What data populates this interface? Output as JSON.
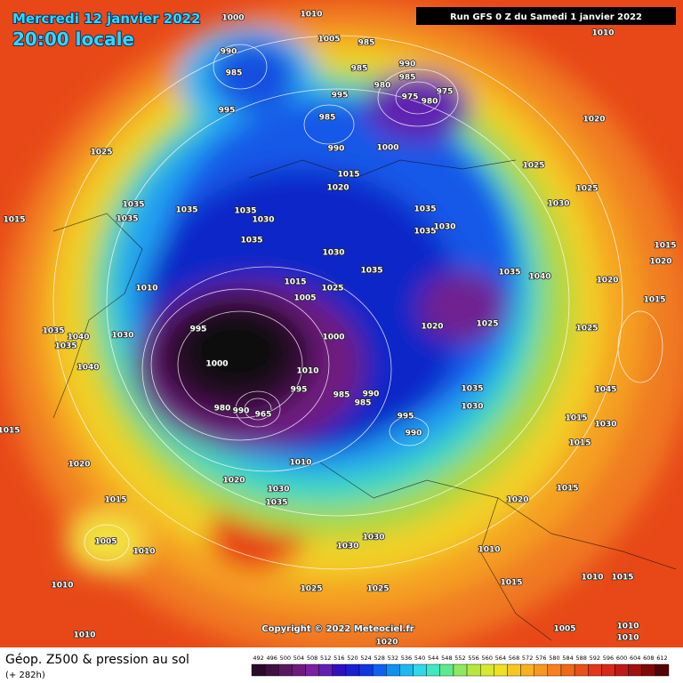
{
  "header": {
    "date": "Mercredi 12 janvier 2022",
    "time": "20:00 locale",
    "run": "Run GFS 0 Z du Samedi 1 janvier 2022"
  },
  "copyright": "Copyright © 2022 Meteociel.fr",
  "footer": {
    "title": "Géop. Z500 & pression au sol",
    "lead": "(+ 282h)"
  },
  "colorbar": {
    "values": [
      492,
      496,
      500,
      504,
      508,
      512,
      516,
      520,
      524,
      528,
      532,
      536,
      540,
      544,
      548,
      552,
      556,
      560,
      564,
      568,
      572,
      576,
      580,
      584,
      588,
      592,
      596,
      600,
      604,
      608,
      612
    ],
    "colors": [
      "#2a0a2a",
      "#401040",
      "#5a1860",
      "#701a80",
      "#7a20a0",
      "#6020b0",
      "#3010c0",
      "#1820d0",
      "#1038e0",
      "#1060f0",
      "#1090f0",
      "#20b8f0",
      "#30d8e8",
      "#40e8c0",
      "#60e890",
      "#90e860",
      "#b8e840",
      "#d8e830",
      "#f0e020",
      "#f8c820",
      "#f8b020",
      "#f89820",
      "#f88020",
      "#f06818",
      "#e85018",
      "#e03818",
      "#d82818",
      "#c01818",
      "#a01010",
      "#800808",
      "#500404"
    ]
  },
  "isobar_labels": [
    "1000",
    "1010",
    "1010",
    "990",
    "985",
    "1005",
    "985",
    "990",
    "985",
    "985",
    "980",
    "975",
    "975",
    "980",
    "995",
    "995",
    "985",
    "990",
    "1000",
    "1020",
    "1025",
    "1025",
    "1025",
    "1015",
    "1020",
    "1035",
    "1035",
    "1035",
    "1035",
    "1030",
    "1035",
    "1035",
    "1030",
    "1030",
    "1015",
    "1035",
    "1030",
    "1035",
    "1035",
    "1040",
    "1015",
    "1025",
    "1005",
    "1010",
    "1020",
    "1020",
    "1015",
    "1035",
    "1040",
    "1035",
    "1030",
    "995",
    "1000",
    "1020",
    "1025",
    "1025",
    "1015",
    "1000",
    "1040",
    "1010",
    "995",
    "985",
    "990",
    "985",
    "1035",
    "1030",
    "1045",
    "1015",
    "1030",
    "980",
    "990",
    "965",
    "995",
    "990",
    "1015",
    "1015",
    "1010",
    "1020",
    "1020",
    "1030",
    "1035",
    "1015",
    "1015",
    "1020",
    "1005",
    "1010",
    "1030",
    "1030",
    "1010",
    "1010",
    "1025",
    "1025",
    "1015",
    "1010",
    "1015",
    "1005",
    "1010",
    "1020",
    "1010",
    "1010"
  ]
}
